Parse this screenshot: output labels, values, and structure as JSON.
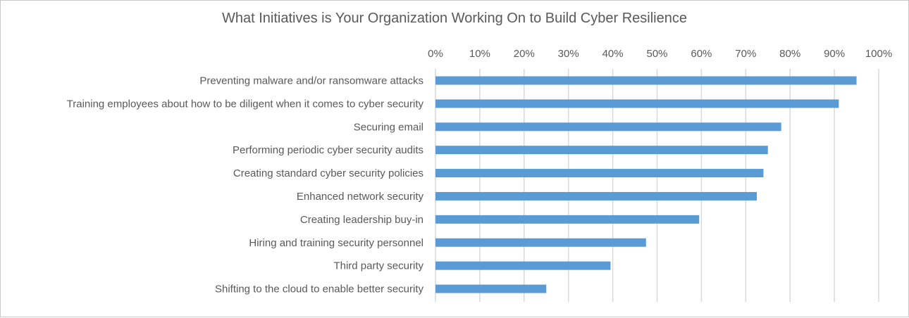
{
  "chart_data": {
    "type": "bar",
    "orientation": "horizontal",
    "title": "What Initiatives is Your Organization Working On to Build Cyber Resilience",
    "xlabel": "",
    "ylabel": "",
    "xlim": [
      0,
      100
    ],
    "x_ticks": [
      "0%",
      "10%",
      "20%",
      "30%",
      "40%",
      "50%",
      "60%",
      "70%",
      "80%",
      "90%",
      "100%"
    ],
    "x_axis_position": "top",
    "grid": true,
    "categories": [
      "Preventing malware and/or ransomware attacks",
      "Training employees about how to be diligent when it comes to cyber security",
      "Securing email",
      "Performing periodic cyber security audits",
      "Creating standard cyber security policies",
      "Enhanced network security",
      "Creating leadership buy-in",
      "Hiring and training security personnel",
      "Third party security",
      "Shifting to the cloud to enable better security"
    ],
    "values": [
      95,
      91,
      78,
      75,
      74,
      72.5,
      59.5,
      47.5,
      39.5,
      25
    ],
    "unit": "%",
    "bar_color": "#5b9bd5",
    "grid_color": "#d9d9d9"
  }
}
